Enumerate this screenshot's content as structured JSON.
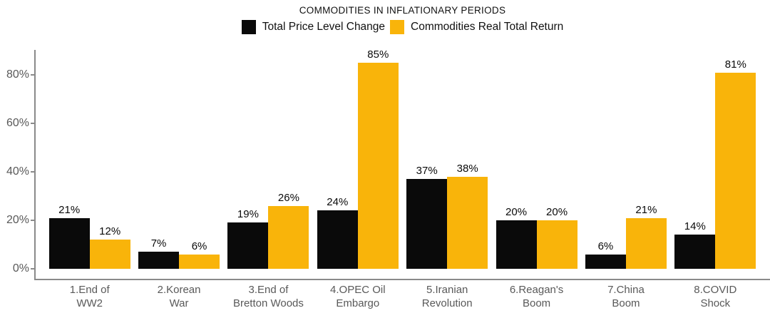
{
  "chart_data": {
    "type": "bar",
    "title": "COMMODITIES IN INFLATIONARY PERIODS",
    "xlabel": "",
    "ylabel": "",
    "ylim": [
      0,
      90
    ],
    "grid": false,
    "legend_position": "top",
    "categories": [
      "1.End of\nWW2",
      "2.Korean\nWar",
      "3.End of\nBretton Woods",
      "4.OPEC Oil\nEmbargo",
      "5.Iranian\nRevolution",
      "6.Reagan's\nBoom",
      "7.China\nBoom",
      "8.COVID\nShock"
    ],
    "series": [
      {
        "name": "Total Price Level Change",
        "color": "#0a0a0a",
        "values": [
          21,
          7,
          19,
          24,
          37,
          20,
          6,
          14
        ],
        "labels": [
          "21%",
          "7%",
          "19%",
          "24%",
          "37%",
          "20%",
          "6%",
          "14%"
        ]
      },
      {
        "name": "Commodities Real Total Return",
        "color": "#f9b40a",
        "values": [
          12,
          6,
          26,
          85,
          38,
          20,
          21,
          81
        ],
        "labels": [
          "12%",
          "6%",
          "26%",
          "85%",
          "38%",
          "20%",
          "21%",
          "81%"
        ]
      }
    ],
    "y_ticks": [
      {
        "value": 0,
        "label": "0%"
      },
      {
        "value": 20,
        "label": "20%"
      },
      {
        "value": 40,
        "label": "40%"
      },
      {
        "value": 60,
        "label": "60%"
      },
      {
        "value": 80,
        "label": "80%"
      }
    ]
  },
  "layout_colors": {
    "axis_line": "#8a8a8a",
    "tick_text": "#595959",
    "value_label_text": "#0a0a0a",
    "title_text": "#111111"
  }
}
